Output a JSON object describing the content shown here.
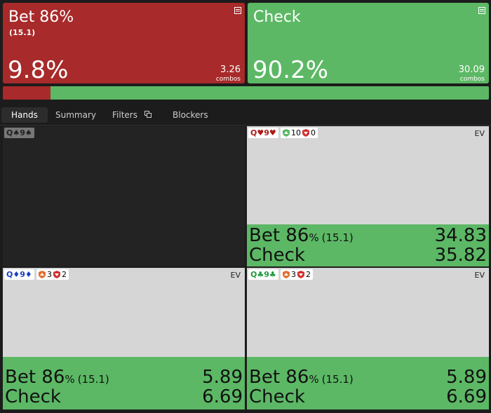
{
  "actions": [
    {
      "name": "Bet 86%",
      "size": "(15.1)",
      "frequency": 9.8,
      "frequency_label": "9.8%",
      "combos": "3.26",
      "combos_label": "combos"
    },
    {
      "name": "Check",
      "frequency": 90.2,
      "frequency_label": "90.2%",
      "combos": "30.09",
      "combos_label": "combos"
    }
  ],
  "tabs": [
    "Hands",
    "Summary",
    "Filters",
    "Blockers"
  ],
  "hands": [
    {
      "hand": "Q♠9♠"
    },
    {
      "hand": "Q♥9♥",
      "blockers": [
        "10",
        "0"
      ],
      "ev_label": "EV",
      "rows": [
        {
          "action": "Bet 86",
          "unit": "%",
          "size": "(15.1)",
          "ev": "34.83"
        },
        {
          "action": "Check",
          "ev": "35.82"
        }
      ]
    },
    {
      "hand": "Q♦9♦",
      "blockers": [
        "3",
        "2"
      ],
      "ev_label": "EV",
      "rows": [
        {
          "action": "Bet 86",
          "unit": "%",
          "size": "(15.1)",
          "ev": "5.89"
        },
        {
          "action": "Check",
          "ev": "6.69"
        }
      ]
    },
    {
      "hand": "Q♣9♣",
      "blockers": [
        "3",
        "2"
      ],
      "ev_label": "EV",
      "rows": [
        {
          "action": "Bet 86",
          "unit": "%",
          "size": "(15.1)",
          "ev": "5.89"
        },
        {
          "action": "Check",
          "ev": "6.69"
        }
      ]
    }
  ]
}
